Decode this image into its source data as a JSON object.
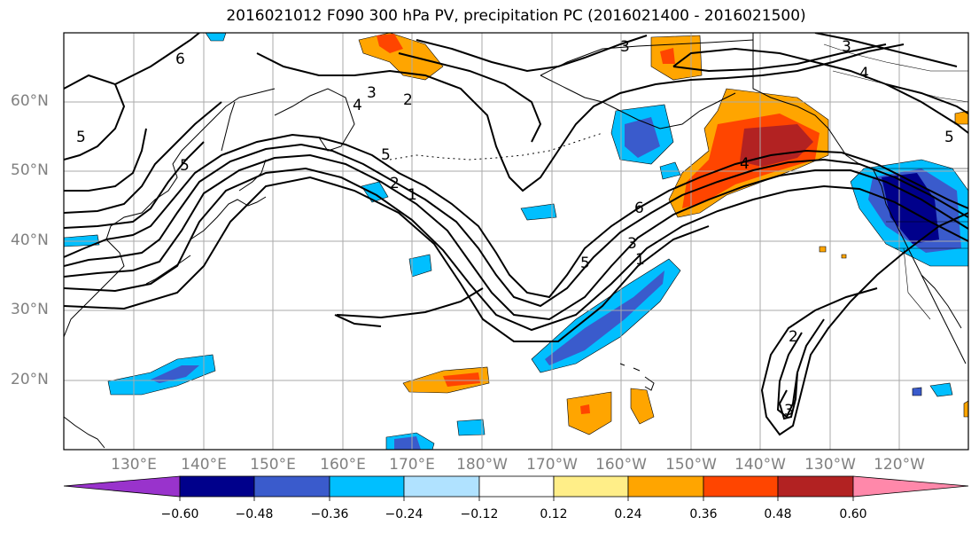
{
  "title": "2016021012 F090 300 hPa PV, precipitation PC (2016021400 - 2016021500)",
  "lat_labels": [
    "60°N",
    "50°N",
    "40°N",
    "30°N",
    "20°N"
  ],
  "lon_labels": [
    "130°E",
    "140°E",
    "150°E",
    "160°E",
    "170°E",
    "180°W",
    "170°W",
    "160°W",
    "150°W",
    "140°W",
    "130°W",
    "120°W"
  ],
  "colorbar": {
    "tick_labels": [
      "−0.60",
      "−0.48",
      "−0.36",
      "−0.24",
      "−0.12",
      "0.12",
      "0.24",
      "0.36",
      "0.48",
      "0.60"
    ],
    "colors": [
      "#9933cc",
      "#00008b",
      "#3a5bcc",
      "#00bfff",
      "#b0e2ff",
      "#ffffff",
      "#ffee88",
      "#ffa500",
      "#ff4500",
      "#b22222",
      "#ff88aa"
    ]
  },
  "contour_labels": [
    "6",
    "5",
    "5",
    "5",
    "4",
    "3",
    "2",
    "2",
    "1",
    "6",
    "3",
    "1",
    "5",
    "2",
    "3",
    "4",
    "4",
    "3",
    "5",
    "3"
  ],
  "colors": {
    "grid": "#aaaaaa",
    "coast": "#000000",
    "contour": "#000000",
    "axis_text": "#808080"
  }
}
